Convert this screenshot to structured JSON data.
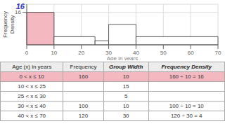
{
  "chart_data": {
    "type": "histogram",
    "bins": [
      0,
      10,
      25,
      30,
      40,
      70
    ],
    "values": [
      16,
      4,
      2,
      10,
      4
    ],
    "colors": [
      "#f4b8c1",
      "#ffffff",
      "#ffffff",
      "#ffffff",
      "#ffffff"
    ],
    "xlabel": "Age in years",
    "ylabel": "Frequency\nDensity",
    "xlim": [
      0,
      70
    ],
    "ylim": [
      0,
      20
    ],
    "xticks": [
      0,
      10,
      20,
      30,
      40,
      50,
      60,
      70
    ],
    "yticks": [
      16
    ],
    "grid": true,
    "annotations": [
      {
        "text": "16",
        "color": "#3333cc"
      }
    ],
    "table": {
      "headers": [
        "Age (x) in years",
        "Frequency",
        "Group Width",
        "Frequency Density"
      ],
      "rows": [
        [
          "0 < x ≤ 10",
          "160",
          "10",
          "160 ÷ 10 = 16"
        ],
        [
          "10 < x ≤ 25",
          null,
          "15",
          null
        ],
        [
          "25 < x ≤ 30",
          null,
          "5",
          null
        ],
        [
          "30 < x ≤ 40",
          "100",
          "10",
          "100 ÷ 10 = 10"
        ],
        [
          "40 < x ≤ 70",
          "120",
          "30",
          "120 ÷ 30 = 4"
        ]
      ],
      "highlight_row": 0,
      "highlight_color": "#f4b8c1"
    }
  }
}
